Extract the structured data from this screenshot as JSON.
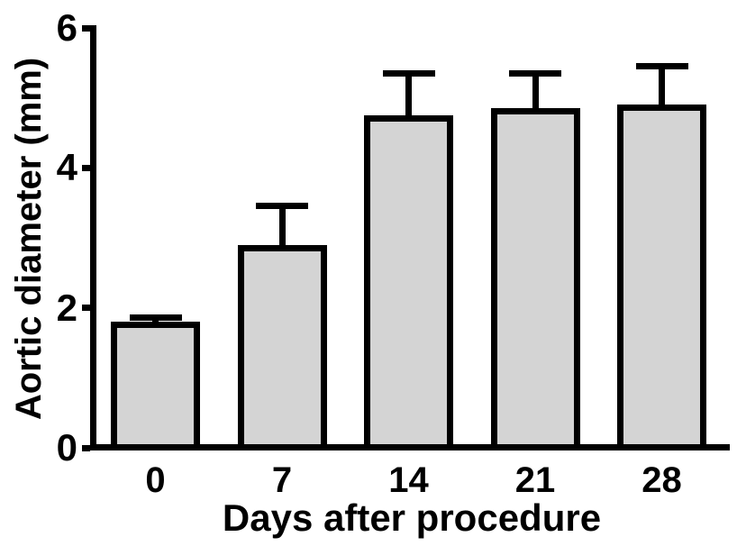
{
  "figure": {
    "background_color": "#ffffff",
    "text_color": "#000000"
  },
  "chart_data": {
    "type": "bar",
    "categories": [
      "0",
      "7",
      "14",
      "21",
      "28"
    ],
    "values": [
      1.8,
      2.9,
      4.75,
      4.85,
      4.9
    ],
    "errors": [
      0.1,
      0.6,
      0.65,
      0.55,
      0.6
    ],
    "error_direction": "up",
    "title": "",
    "xlabel": "Days after procedure",
    "ylabel": "Aortic diameter (mm)",
    "ylim": [
      0,
      6
    ],
    "yticks": [
      0,
      2,
      4,
      6
    ],
    "grid": false,
    "legend": null,
    "bar_fill_color": "#d4d4d4",
    "bar_border_color": "#000000",
    "axis_color": "#000000"
  }
}
